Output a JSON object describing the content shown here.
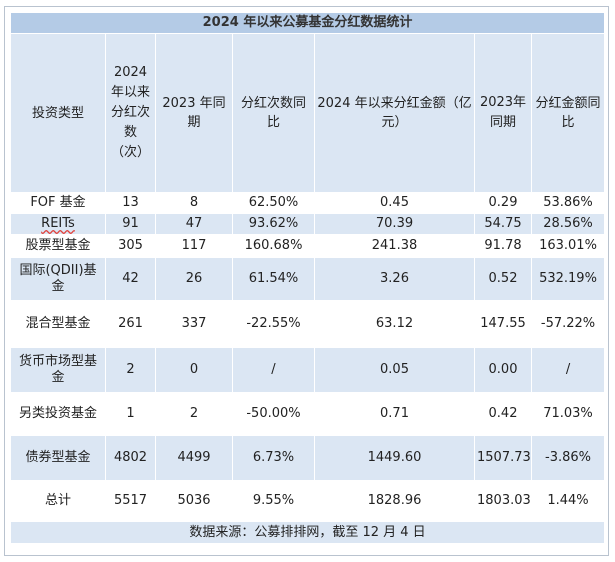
{
  "title": "2024 年以来公募基金分红数据统计",
  "headers": [
    "投资类型",
    "2024年以来分红次数（次）",
    "2023 年同期",
    "分红次数同比",
    "2024 年以来分红金额（亿元）",
    "2023年同期",
    "分红金额同比"
  ],
  "rows": [
    [
      "FOF 基金",
      "13",
      "8",
      "62.50%",
      "0.45",
      "0.29",
      "53.86%"
    ],
    [
      "REITs",
      "91",
      "47",
      "93.62%",
      "70.39",
      "54.75",
      "28.56%"
    ],
    [
      "股票型基金",
      "305",
      "117",
      "160.68%",
      "241.38",
      "91.78",
      "163.01%"
    ],
    [
      "国际(QDII)基金",
      "42",
      "26",
      "61.54%",
      "3.26",
      "0.52",
      "532.19%"
    ],
    [
      "混合型基金",
      "261",
      "337",
      "-22.55%",
      "63.12",
      "147.55",
      "-57.22%"
    ],
    [
      "货币市场型基金",
      "2",
      "0",
      "/",
      "0.05",
      "0.00",
      "/"
    ],
    [
      "另类投资基金",
      "1",
      "2",
      "-50.00%",
      "0.71",
      "0.42",
      "71.03%"
    ],
    [
      "债券型基金",
      "4802",
      "4499",
      "6.73%",
      "1449.60",
      "1507.73",
      "-3.86%"
    ],
    [
      "总计",
      "5517",
      "5036",
      "9.55%",
      "1828.96",
      "1803.03",
      "1.44%"
    ]
  ],
  "source": "数据来源：公募排排网，截至 12 月 4 日"
}
